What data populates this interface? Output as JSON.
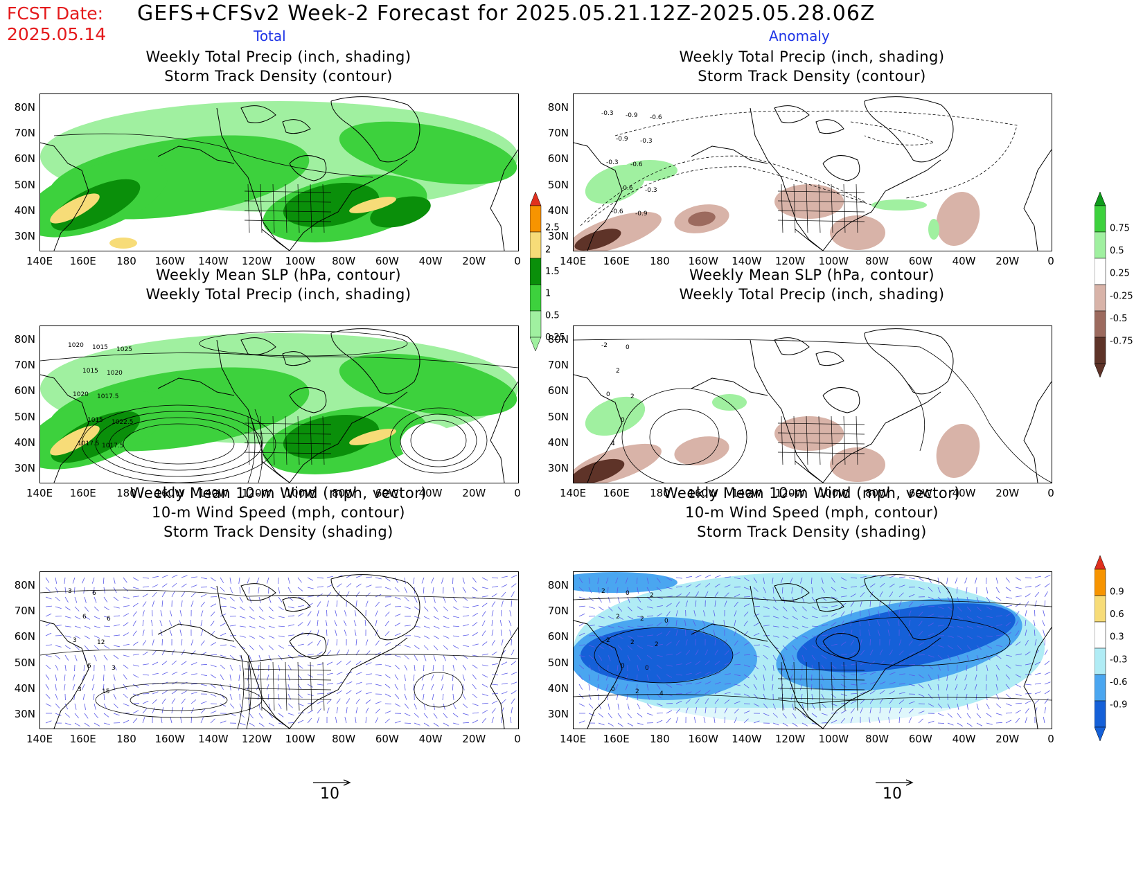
{
  "header": {
    "fcst_label": "FCST Date:",
    "fcst_date": "2025.05.14",
    "title": "GEFS+CFSv2 Week-2 Forecast for 2025.05.21.12Z-2025.05.28.06Z",
    "col_total": "Total",
    "col_anomaly": "Anomaly"
  },
  "axes": {
    "lat_labels": [
      "80N",
      "70N",
      "60N",
      "50N",
      "40N",
      "30N"
    ],
    "lon_labels": [
      "140E",
      "160E",
      "180",
      "160W",
      "140W",
      "120W",
      "100W",
      "80W",
      "60W",
      "40W",
      "20W",
      "0"
    ]
  },
  "panels": {
    "precip_total": {
      "line1": "Weekly Total Precip (inch, shading)",
      "line2": "Storm Track Density (contour)"
    },
    "precip_anom": {
      "line1": "Weekly Total Precip (inch, shading)",
      "line2": "Storm Track Density (contour)",
      "contour_labels": [
        "-0.3",
        "-0.3",
        "-0.6",
        "-0.9",
        "-0.6",
        "-0.9",
        "-0.6",
        "-0.9",
        "-0.3",
        "-0.3",
        "-0.6"
      ]
    },
    "slp_total": {
      "line1": "Weekly Mean SLP (hPa, contour)",
      "line2": "Weekly Total Precip (inch, shading)",
      "contour_labels": [
        "1020",
        "1020",
        "1017.5",
        "1015",
        "1015",
        "1015",
        "1017.5",
        "1017.5",
        "1020",
        "1022.5",
        "1025"
      ]
    },
    "slp_anom": {
      "line1": "Weekly Mean SLP (hPa, contour)",
      "line2": "Weekly Total Precip (inch, shading)",
      "contour_labels": [
        "-2",
        "0",
        "4",
        "2",
        "0",
        "0",
        "2"
      ]
    },
    "wind_total": {
      "line1": "Weekly Mean 10-m Wind (mph, vector)",
      "line2": "10-m Wind Speed (mph, contour)",
      "line3": "Storm Track Density (shading)",
      "contour_labels": [
        "3",
        "3",
        "3",
        "6",
        "6",
        "6",
        "12",
        "15",
        "6",
        "3"
      ]
    },
    "wind_anom": {
      "line1": "Weekly Mean 10-m Wind (mph, vector)",
      "line2": "10-m Wind Speed (mph, contour)",
      "line3": "Storm Track Density (shading)",
      "contour_labels": [
        "2",
        "2",
        "0",
        "2",
        "0",
        "0",
        "2",
        "2",
        "2",
        "0",
        "2",
        "2",
        "4",
        "0"
      ]
    }
  },
  "colorbars": {
    "precip_total": {
      "labels": [
        "2.5",
        "2",
        "1.5",
        "1",
        "0.5",
        "0.25"
      ],
      "colors": [
        "#e0301e",
        "#f79400",
        "#f7dc78",
        "#0a8f0a",
        "#3dd13d",
        "#a0f0a0"
      ]
    },
    "precip_anom": {
      "labels": [
        "0.75",
        "0.5",
        "0.25",
        "-0.25",
        "-0.5",
        "-0.75"
      ],
      "colors": [
        "#0e9a1a",
        "#3dd13d",
        "#a0f0a0",
        "#ffffff",
        "#d8b3a8",
        "#9c6a5e",
        "#5e3328"
      ]
    },
    "storm_anom": {
      "labels": [
        "0.9",
        "0.6",
        "0.3",
        "-0.3",
        "-0.6",
        "-0.9"
      ],
      "colors": [
        "#e0301e",
        "#f79400",
        "#f7dc78",
        "#ffffff",
        "#b0ecf5",
        "#4aa6f0",
        "#1560d8"
      ]
    }
  },
  "vector_ref": {
    "left": "10",
    "right": "10"
  }
}
